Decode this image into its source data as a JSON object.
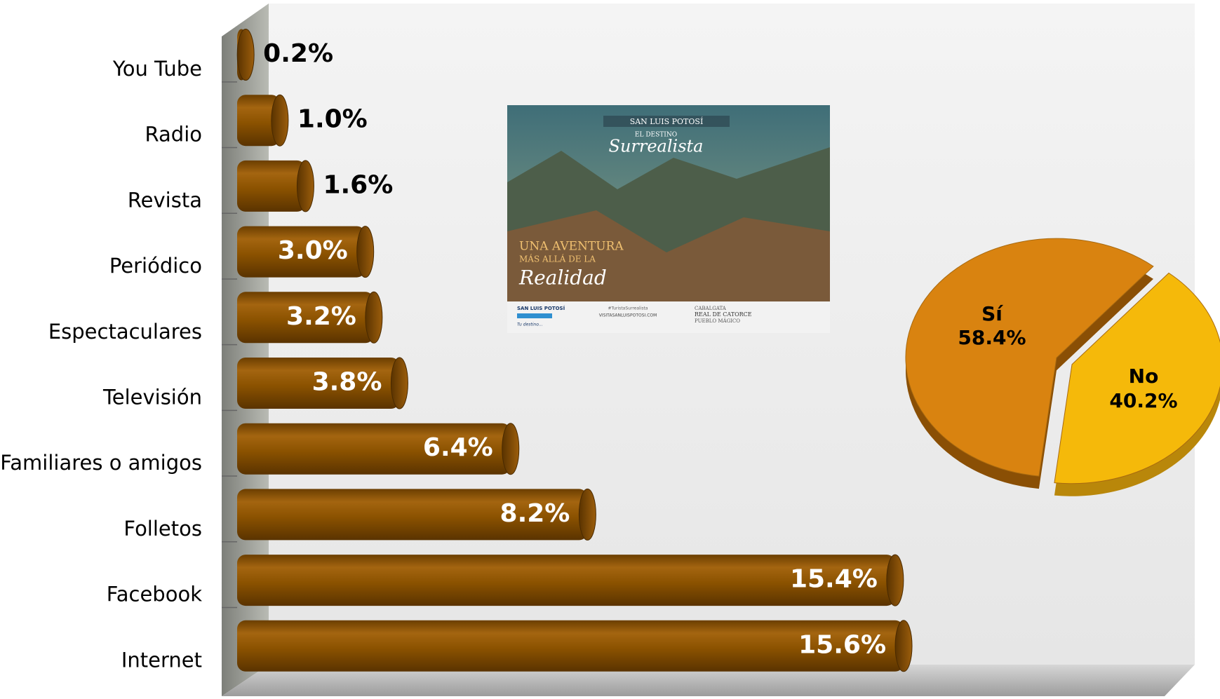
{
  "chart_data": [
    {
      "type": "bar",
      "orientation": "horizontal",
      "categories": [
        "You Tube",
        "Radio",
        "Revista",
        "Periódico",
        "Espectaculares",
        "Televisión",
        "Familiares o amigos",
        "Folletos",
        "Facebook",
        "Internet"
      ],
      "values": [
        0.2,
        1.0,
        1.6,
        3.0,
        3.2,
        3.8,
        6.4,
        8.2,
        15.4,
        15.6
      ],
      "value_labels": [
        "0.2%",
        "1.0%",
        "1.6%",
        "3.0%",
        "3.2%",
        "3.8%",
        "6.4%",
        "8.2%",
        "15.4%",
        "15.6%"
      ],
      "color": "#8B5200"
    },
    {
      "type": "pie",
      "categories": [
        "Sí",
        "No"
      ],
      "values": [
        58.4,
        40.2
      ],
      "value_labels": [
        "58.4%",
        "40.2%"
      ],
      "colors": [
        "#D98310",
        "#F5B90A"
      ]
    }
  ],
  "poster": {
    "brand": "SAN LUIS POTOSÍ",
    "tagline_small": "EL DESTINO",
    "tagline": "Surrealista",
    "headline_1": "UNA AVENTURA",
    "headline_2": "MÁS ALLÁ DE LA",
    "headline_3": "Realidad",
    "logo": "SAN LUIS POTOSÍ",
    "logo_sub": "Tu destino...",
    "hashtag": "#TuristaSurrealista",
    "website": "VISITASANLUISPOTOSI.COM",
    "event_1": "CABALGATA",
    "event_2": "REAL DE CATORCE",
    "event_3": "PUEBLO MÁGICO"
  }
}
